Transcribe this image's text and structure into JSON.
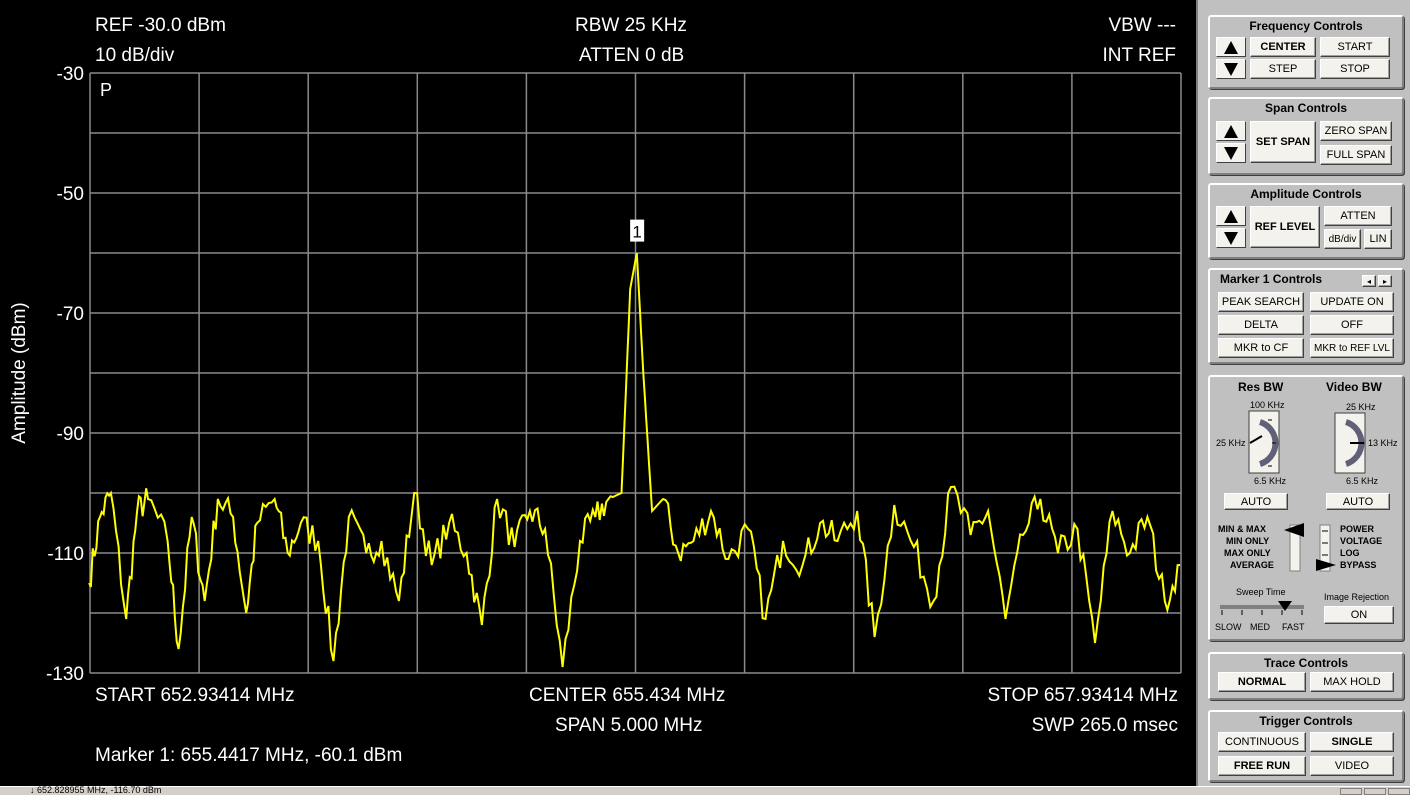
{
  "header": {
    "ref": "REF -30.0 dBm",
    "scale": "10 dB/div",
    "rbw": "RBW 25 KHz",
    "atten": "ATTEN 0 dB",
    "vbw": "VBW ---",
    "intref": "INT REF",
    "mode_letter": "P"
  },
  "footer": {
    "start": "START 652.93414 MHz",
    "center": "CENTER 655.434 MHz",
    "stop": "STOP 657.93414 MHz",
    "span": "SPAN 5.000 MHz",
    "sweep": "SWP 265.0 msec",
    "marker_readout": "Marker 1: 655.4417 MHz, -60.1 dBm"
  },
  "status_text": "↓ 652.828955 MHz, -116.70 dBm",
  "chart_data": {
    "type": "line",
    "ylabel": "Amplitude (dBm)",
    "ylim": [
      -130,
      -30
    ],
    "yticks": [
      -30,
      -50,
      -70,
      -90,
      -110,
      -130
    ],
    "xlim": [
      652.93414,
      657.93414
    ],
    "x_unit": "MHz",
    "grid": true,
    "trace_color": "#ffff00",
    "noise_floor_dbm": -106,
    "marker": {
      "label": "1",
      "freq_mhz": 655.4417,
      "level_dbm": -60.1
    },
    "series": [
      {
        "values_freq_mhz": [
          652.93,
          652.98,
          653.03,
          653.1,
          653.15,
          653.2,
          653.29,
          653.34,
          653.4,
          653.46,
          653.52,
          653.59,
          653.65,
          653.7,
          653.78,
          653.84,
          653.9,
          653.98,
          654.05,
          654.12,
          654.2,
          654.27,
          654.35,
          654.42,
          654.5,
          654.58,
          654.66,
          654.73,
          654.8,
          654.88,
          654.95,
          655.02,
          655.1,
          655.18,
          655.25,
          655.31,
          655.37,
          655.41,
          655.44,
          655.47,
          655.51,
          655.56,
          655.63,
          655.7,
          655.78,
          655.86,
          655.95,
          656.03,
          656.11,
          656.2,
          656.28,
          656.36,
          656.45,
          656.53,
          656.62,
          656.71,
          656.8,
          656.88,
          656.97,
          657.05,
          657.13,
          657.21,
          657.29,
          657.37,
          657.46,
          657.54,
          657.62,
          657.7,
          657.78,
          657.86,
          657.93
        ],
        "values_dbm": [
          -115,
          -104,
          -100,
          -121,
          -103,
          -101,
          -108,
          -126,
          -104,
          -118,
          -101,
          -104,
          -120,
          -105,
          -101,
          -110,
          -105,
          -108,
          -128,
          -104,
          -110,
          -108,
          -118,
          -100,
          -112,
          -105,
          -110,
          -122,
          -101,
          -109,
          -103,
          -106,
          -129,
          -108,
          -104,
          -101,
          -100,
          -66,
          -60,
          -80,
          -103,
          -101,
          -110,
          -108,
          -103,
          -111,
          -106,
          -121,
          -108,
          -112,
          -105,
          -108,
          -103,
          -124,
          -102,
          -109,
          -118,
          -99,
          -107,
          -103,
          -121,
          -107,
          -101,
          -110,
          -106,
          -125,
          -103,
          -110,
          -104,
          -118,
          -112
        ]
      }
    ]
  },
  "panel": {
    "frequency": {
      "title": "Frequency Controls",
      "center": "CENTER",
      "start": "START",
      "step": "STEP",
      "stop": "STOP"
    },
    "span": {
      "title": "Span Controls",
      "set_span": "SET SPAN",
      "zero_span": "ZERO SPAN",
      "full_span": "FULL SPAN"
    },
    "amplitude": {
      "title": "Amplitude Controls",
      "ref_level": "REF LEVEL",
      "atten": "ATTEN",
      "db_div": "dB/div",
      "lin": "LIN"
    },
    "marker": {
      "title": "Marker 1 Controls",
      "peak_search": "PEAK SEARCH",
      "update_on": "UPDATE ON",
      "delta": "DELTA",
      "off": "OFF",
      "mkr_cf": "MKR to CF",
      "mkr_ref": "MKR to REF LVL"
    },
    "bw": {
      "res_title": "Res BW",
      "video_title": "Video BW",
      "res_top": "100 KHz",
      "res_mid": "25 KHz",
      "res_bot": "6.5 KHz",
      "vid_top": "25 KHz",
      "vid_mid": "13 KHz",
      "vid_bot": "6.5 KHz",
      "auto": "AUTO",
      "det_modes": [
        "MIN & MAX",
        "MIN ONLY",
        "MAX ONLY",
        "AVERAGE"
      ],
      "vid_modes": [
        "POWER",
        "VOLTAGE",
        "LOG",
        "BYPASS"
      ],
      "sweep_title": "Sweep Time",
      "slow": "SLOW",
      "med": "MED",
      "fast": "FAST",
      "image_title": "Image Rejection",
      "image_on": "ON"
    },
    "trace": {
      "title": "Trace Controls",
      "normal": "NORMAL",
      "max_hold": "MAX HOLD"
    },
    "trigger": {
      "title": "Trigger Controls",
      "continuous": "CONTINUOUS",
      "single": "SINGLE",
      "free_run": "FREE RUN",
      "video": "VIDEO"
    }
  }
}
